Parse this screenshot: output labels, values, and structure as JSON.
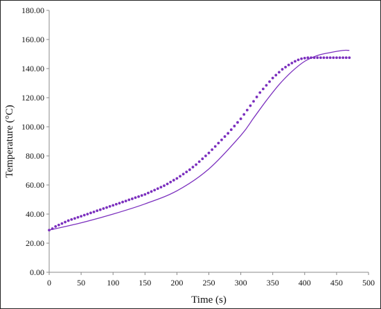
{
  "chart_data": {
    "type": "line",
    "xlabel": "Time (s)",
    "ylabel": "Temperature (°C)",
    "xlim": [
      0,
      500
    ],
    "ylim": [
      0,
      180
    ],
    "x_ticks": [
      "0",
      "50",
      "100",
      "150",
      "200",
      "250",
      "300",
      "350",
      "400",
      "450",
      "500"
    ],
    "y_ticks": [
      "0.00",
      "20.00",
      "40.00",
      "60.00",
      "80.00",
      "100.00",
      "120.00",
      "140.00",
      "160.00",
      "180.00"
    ],
    "grid": false,
    "legend": "none",
    "colors": {
      "series": "#7b2fbe",
      "axis": "#888888",
      "frame": "#222222"
    },
    "series": [
      {
        "style": "solid-line",
        "x": [
          0,
          50,
          100,
          150,
          200,
          250,
          300,
          320,
          340,
          360,
          380,
          400,
          420,
          440,
          460,
          470
        ],
        "values": [
          29,
          34,
          40,
          47,
          56,
          71,
          94,
          106,
          118,
          129,
          138,
          145,
          149,
          151,
          152.5,
          152.5
        ]
      },
      {
        "style": "dotted-markers",
        "x": [
          0,
          5,
          10,
          15,
          20,
          25,
          30,
          35,
          40,
          45,
          50,
          55,
          60,
          65,
          70,
          75,
          80,
          85,
          90,
          95,
          100,
          105,
          110,
          115,
          120,
          125,
          130,
          135,
          140,
          145,
          150,
          155,
          160,
          165,
          170,
          175,
          180,
          185,
          190,
          195,
          200,
          205,
          210,
          215,
          220,
          225,
          230,
          235,
          240,
          245,
          250,
          255,
          260,
          265,
          270,
          275,
          280,
          285,
          290,
          295,
          300,
          305,
          310,
          315,
          320,
          325,
          330,
          335,
          340,
          345,
          350,
          355,
          360,
          365,
          370,
          375,
          380,
          385,
          390,
          395,
          400,
          405,
          410,
          415,
          420,
          425,
          430,
          435,
          440,
          445,
          450,
          455,
          460,
          465,
          470
        ],
        "values": [
          29,
          30,
          31.5,
          32.5,
          33.5,
          34.5,
          35.5,
          36.3,
          37,
          37.8,
          38.5,
          39.3,
          40,
          40.8,
          41.5,
          42.3,
          43,
          43.8,
          44.5,
          45.3,
          46,
          46.8,
          47.5,
          48.3,
          49,
          49.8,
          50.5,
          51.3,
          52,
          52.8,
          53.5,
          54.5,
          55.5,
          56.5,
          57.5,
          58.5,
          59.5,
          60.7,
          62,
          63.3,
          64.5,
          66,
          67.5,
          69,
          70.5,
          72.3,
          74,
          76,
          78,
          80,
          82,
          84.3,
          86.5,
          88.8,
          91,
          93.3,
          95.5,
          98,
          100.5,
          103,
          105.5,
          108.5,
          111.5,
          114.5,
          117.5,
          120.5,
          123.5,
          126,
          128.5,
          131,
          133.5,
          135.5,
          137.5,
          139.5,
          141,
          142.5,
          143.8,
          145,
          146,
          146.8,
          147.2,
          147.5,
          147.5,
          147.5,
          147.5,
          147.5,
          147.5,
          147.5,
          147.5,
          147.5,
          147.5,
          147.5,
          147.5,
          147.5,
          147.5
        ]
      }
    ]
  }
}
